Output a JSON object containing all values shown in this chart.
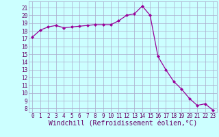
{
  "x": [
    0,
    1,
    2,
    3,
    4,
    5,
    6,
    7,
    8,
    9,
    10,
    11,
    12,
    13,
    14,
    15,
    16,
    17,
    18,
    19,
    20,
    21,
    22,
    23
  ],
  "y": [
    17.2,
    18.1,
    18.5,
    18.7,
    18.4,
    18.5,
    18.6,
    18.7,
    18.8,
    18.8,
    18.8,
    19.3,
    20.0,
    20.2,
    21.2,
    20.0,
    14.7,
    13.0,
    11.5,
    10.5,
    9.3,
    8.4,
    8.6,
    7.8
  ],
  "line_color": "#990099",
  "marker": "D",
  "marker_size": 2.0,
  "bg_color": "#ccffff",
  "grid_color": "#aaaacc",
  "xlabel": "Windchill (Refroidissement éolien,°C)",
  "ylim": [
    7.5,
    21.8
  ],
  "xlim": [
    -0.5,
    23.5
  ],
  "yticks": [
    8,
    9,
    10,
    11,
    12,
    13,
    14,
    15,
    16,
    17,
    18,
    19,
    20,
    21
  ],
  "xticks": [
    0,
    1,
    2,
    3,
    4,
    5,
    6,
    7,
    8,
    9,
    10,
    11,
    12,
    13,
    14,
    15,
    16,
    17,
    18,
    19,
    20,
    21,
    22,
    23
  ],
  "tick_label_fontsize": 5.5,
  "xlabel_fontsize": 7.0,
  "label_color": "#660066"
}
